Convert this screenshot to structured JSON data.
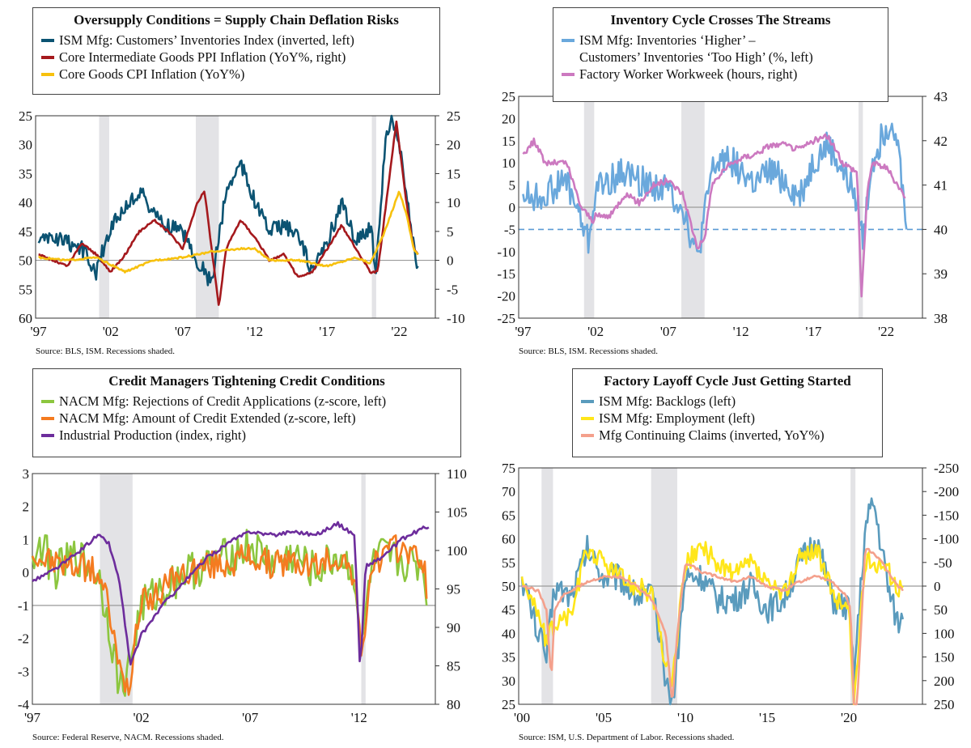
{
  "chart_data": [
    {
      "type": "line",
      "title": "Oversupply Conditions = Supply Chain Deflation Risks",
      "source": "Source: BLS, ISM. Recessions shaded.",
      "x_ticks": [
        "'97",
        "'02",
        "'07",
        "'12",
        "'17",
        "'22"
      ],
      "x_tick_years": [
        1997,
        2002,
        2007,
        2012,
        2017,
        2022
      ],
      "x_range": [
        1996.8,
        2024.5
      ],
      "left_axis": {
        "ticks": [
          "25",
          "30",
          "35",
          "40",
          "45",
          "50",
          "55",
          "60"
        ],
        "values": [
          25,
          30,
          35,
          40,
          45,
          50,
          55,
          60
        ],
        "range": [
          25,
          60
        ],
        "inverted": true
      },
      "right_axis": {
        "ticks": [
          "25",
          "20",
          "15",
          "10",
          "5",
          "0",
          "-5",
          "-10"
        ],
        "values": [
          25,
          20,
          15,
          10,
          5,
          0,
          -5,
          -10
        ],
        "range": [
          -10,
          25
        ]
      },
      "zero_line_right": 0,
      "recessions": [
        [
          2001.2,
          2001.9
        ],
        [
          2007.9,
          2009.5
        ],
        [
          2020.1,
          2020.4
        ]
      ],
      "series": [
        {
          "name": "ISM Mfg: Customers’ Inventories Index (inverted, left)",
          "color": "#0b5372",
          "axis": "left",
          "amp": 1.4,
          "x": [
            1997,
            1998,
            1999,
            2000,
            2001,
            2002,
            2003,
            2004,
            2005,
            2006,
            2007,
            2008,
            2009,
            2010,
            2011,
            2012,
            2013,
            2014,
            2015,
            2016,
            2017,
            2018,
            2019,
            2020,
            2020.4,
            2021,
            2021.5,
            2022,
            2022.5,
            2023,
            2023.3
          ],
          "y": [
            47,
            46,
            47,
            48,
            52,
            44,
            41,
            38,
            42,
            44,
            45,
            50,
            54,
            38,
            33,
            40,
            45,
            44,
            46,
            52,
            47,
            40,
            47,
            44,
            52,
            30,
            25,
            30,
            38,
            48,
            51
          ]
        },
        {
          "name": "Core Intermediate Goods PPI Inflation (YoY%, right)",
          "color": "#a5191d",
          "axis": "right",
          "amp": 0.2,
          "x": [
            1997,
            1998,
            1999,
            2000,
            2001,
            2002,
            2003,
            2004,
            2005,
            2006,
            2007,
            2008,
            2008.5,
            2009,
            2009.5,
            2010,
            2011,
            2012,
            2013,
            2014,
            2015,
            2016,
            2017,
            2018,
            2019,
            2020,
            2020.5,
            2021,
            2021.8,
            2022,
            2022.5,
            2023,
            2023.3
          ],
          "y": [
            1,
            0,
            -1,
            3,
            1,
            -2,
            1,
            5,
            7,
            5,
            2,
            10,
            12,
            2,
            -8,
            2,
            7,
            4,
            0,
            1,
            -3,
            -2,
            2,
            6,
            2,
            -2,
            -2,
            8,
            24,
            20,
            10,
            2,
            1
          ]
        },
        {
          "name": "Core Goods CPI Inflation (YoY%)",
          "color": "#f7c10e",
          "axis": "right",
          "amp": 0.15,
          "x": [
            1997,
            1999,
            2001,
            2003,
            2005,
            2007,
            2009,
            2011,
            2012,
            2013,
            2015,
            2017,
            2019,
            2020,
            2021,
            2022,
            2022.5,
            2023,
            2023.3
          ],
          "y": [
            0.5,
            0,
            0.5,
            -2,
            0,
            0.5,
            1.5,
            2,
            2,
            0,
            0,
            -1,
            0.5,
            -0.5,
            5,
            12,
            8,
            2,
            1
          ]
        }
      ]
    },
    {
      "type": "line",
      "title": "Inventory Cycle Crosses The Streams",
      "source": "Source: BLS, ISM. Recessions shaded.",
      "x_ticks": [
        "'97",
        "'02",
        "'07",
        "'12",
        "'17",
        "'22"
      ],
      "x_tick_years": [
        1997,
        2002,
        2007,
        2012,
        2017,
        2022
      ],
      "x_range": [
        1996.7,
        2024.5
      ],
      "left_axis": {
        "ticks": [
          "25",
          "20",
          "15",
          "10",
          "5",
          "0",
          "-5",
          "-10",
          "-15",
          "-20",
          "-25"
        ],
        "values": [
          25,
          20,
          15,
          10,
          5,
          0,
          -5,
          -10,
          -15,
          -20,
          -25
        ],
        "range": [
          -25,
          25
        ]
      },
      "right_axis": {
        "ticks": [
          "43",
          "42",
          "41",
          "40",
          "39",
          "38"
        ],
        "values": [
          43,
          42,
          41,
          40,
          39,
          38
        ],
        "range": [
          38,
          43
        ]
      },
      "zero_line_left": 0,
      "dashed_line_left": -5,
      "recessions": [
        [
          2001.2,
          2001.9
        ],
        [
          2007.9,
          2009.5
        ],
        [
          2020.1,
          2020.4
        ]
      ],
      "series": [
        {
          "name": "ISM Mfg: Inventories ‘Higher’ –\nCustomers’ Inventories ‘Too High’ (%, left)",
          "color": "#6aa8dc",
          "axis": "left",
          "amp": 3.5,
          "x": [
            1997,
            1998,
            1999,
            2000,
            2001,
            2001.5,
            2002,
            2003,
            2004,
            2005,
            2006,
            2007,
            2008,
            2009,
            2010,
            2011,
            2012,
            2013,
            2014,
            2015,
            2016,
            2017,
            2018,
            2019,
            2020,
            2020.4,
            2021,
            2022,
            2022.5,
            2023,
            2023.4
          ],
          "y": [
            3,
            2,
            4,
            6,
            -3,
            -8,
            4,
            6,
            8,
            6,
            5,
            4,
            0,
            -12,
            8,
            12,
            8,
            5,
            8,
            6,
            2,
            10,
            14,
            8,
            2,
            -8,
            10,
            18,
            20,
            8,
            -5
          ]
        },
        {
          "name": "Factory Worker Workweek (hours, right)",
          "color": "#cc79c0",
          "axis": "right",
          "amp": 0.07,
          "x": [
            1997,
            1997.8,
            1998.5,
            1999,
            2000,
            2001,
            2001.8,
            2002,
            2003,
            2004,
            2005,
            2006,
            2007,
            2008,
            2009,
            2009.5,
            2010,
            2011,
            2012,
            2013,
            2014,
            2015,
            2016,
            2017,
            2018,
            2019,
            2020,
            2020.3,
            2020.7,
            2021,
            2022,
            2023,
            2023.3
          ],
          "y": [
            41.7,
            42.0,
            41.5,
            41.5,
            41.5,
            40.5,
            40.2,
            40.3,
            40.3,
            40.8,
            40.6,
            41.0,
            41.1,
            40.8,
            39.6,
            39.8,
            41.0,
            41.4,
            41.6,
            41.7,
            41.9,
            41.9,
            41.8,
            42.0,
            42.1,
            41.5,
            41.3,
            38.5,
            40.8,
            41.5,
            41.4,
            40.9,
            40.7
          ]
        }
      ]
    },
    {
      "type": "line",
      "title": "Credit Managers Tightening Credit Conditions",
      "source": "Source: Federal Reserve, NACM. Recessions shaded.",
      "x_ticks": [
        "'97",
        "'02",
        "'07",
        "'12"
      ],
      "x_tick_years": [
        1997,
        2002,
        2007,
        2012
      ],
      "x_range": [
        1997,
        2015.5
      ],
      "left_axis": {
        "ticks": [
          "3",
          "2",
          "1",
          "0",
          "-1",
          "-2",
          "-3",
          "-4"
        ],
        "values": [
          3,
          2,
          1,
          0,
          -1,
          -2,
          -3,
          -4
        ],
        "range": [
          -4,
          3
        ]
      },
      "right_axis": {
        "ticks": [
          "110",
          "105",
          "100",
          "95",
          "90",
          "85",
          "80"
        ],
        "values": [
          110,
          105,
          100,
          95,
          90,
          85,
          80
        ],
        "range": [
          80,
          110
        ]
      },
      "zero_line_left": -1,
      "recessions": [
        [
          2000.1,
          2001.6
        ],
        [
          2012.1,
          2012.3
        ]
      ],
      "series": [
        {
          "name": "NACM Mfg: Rejections of Credit Applications (z-score, left)",
          "color": "#8cc63f",
          "axis": "left",
          "amp": 0.6,
          "x": [
            1997,
            1997.5,
            1998,
            1999,
            2000,
            2000.5,
            2001,
            2001.4,
            2002,
            2003,
            2004,
            2005,
            2006,
            2007,
            2008,
            2009,
            2010,
            2011,
            2011.8,
            2012.1,
            2012.5,
            2013,
            2014,
            2015,
            2015.1
          ],
          "y": [
            0.5,
            0.8,
            0,
            0.5,
            0,
            -1.5,
            -3.5,
            -3.0,
            -1,
            -0.5,
            0,
            0.2,
            0.5,
            0.8,
            0.3,
            0.5,
            0,
            0.5,
            0,
            -2.5,
            0,
            0.5,
            0.3,
            0.2,
            -1
          ]
        },
        {
          "name": "NACM Mfg: Amount of Credit Extended (z-score, left)",
          "color": "#f47b20",
          "axis": "left",
          "amp": 0.45,
          "x": [
            1997,
            1998,
            1999,
            2000,
            2000.5,
            2001,
            2001.4,
            2002,
            2003,
            2004,
            2005,
            2006,
            2007,
            2008,
            2009,
            2010,
            2011,
            2011.8,
            2012.1,
            2012.5,
            2013,
            2014,
            2015,
            2015.1
          ],
          "y": [
            0.5,
            0.3,
            0.2,
            0,
            -1,
            -3,
            -3.5,
            -1,
            -0.5,
            0,
            0.2,
            0.3,
            0.5,
            0.2,
            0.3,
            0.2,
            0.5,
            0,
            -2.8,
            0,
            0.5,
            0.8,
            0.3,
            -0.8
          ]
        },
        {
          "name": "Industrial Production (index, right)",
          "color": "#6d2d9c",
          "axis": "right",
          "amp": 0.25,
          "x": [
            1997,
            1998,
            1999,
            2000,
            2000.5,
            2001,
            2001.5,
            2002,
            2003,
            2004,
            2005,
            2006,
            2007,
            2008,
            2009,
            2010,
            2011,
            2011.8,
            2012.05,
            2012.3,
            2013,
            2014,
            2015,
            2015.2
          ],
          "y": [
            96,
            97.5,
            99.5,
            102,
            101,
            96,
            85,
            89,
            93,
            96,
            99,
            101,
            102.5,
            102,
            102.5,
            102,
            103.5,
            102,
            84,
            98,
            99,
            101.5,
            103,
            103
          ]
        }
      ]
    },
    {
      "type": "line",
      "title": "Factory Layoff Cycle Just Getting Started",
      "source": "Source: ISM, U.S. Department of Labor. Recessions shaded.",
      "x_ticks": [
        "'00",
        "'05",
        "'10",
        "'15",
        "'20"
      ],
      "x_tick_years": [
        2000,
        2005,
        2010,
        2015,
        2020
      ],
      "x_range": [
        1999.8,
        2024.5
      ],
      "left_axis": {
        "ticks": [
          "75",
          "70",
          "65",
          "60",
          "55",
          "50",
          "45",
          "40",
          "35",
          "30",
          "25"
        ],
        "values": [
          75,
          70,
          65,
          60,
          55,
          50,
          45,
          40,
          35,
          30,
          25
        ],
        "range": [
          25,
          75
        ]
      },
      "right_axis": {
        "ticks": [
          "-250",
          "-200",
          "-150",
          "-100",
          "-50",
          "0",
          "50",
          "100",
          "150",
          "200",
          "250"
        ],
        "values": [
          -250,
          -200,
          -150,
          -100,
          -50,
          0,
          50,
          100,
          150,
          200,
          250
        ],
        "range": [
          -250,
          250
        ],
        "inverted": true
      },
      "zero_line_left": 50,
      "recessions": [
        [
          2001.2,
          2001.9
        ],
        [
          2007.9,
          2009.5
        ],
        [
          2020.1,
          2020.4
        ]
      ],
      "series": [
        {
          "name": "ISM Mfg: Backlogs (left)",
          "color": "#5a9bbd",
          "axis": "left",
          "amp": 3,
          "x": [
            2000,
            2001,
            2001.5,
            2002,
            2003,
            2004,
            2005,
            2006,
            2007,
            2008,
            2008.8,
            2009.2,
            2010,
            2011,
            2012,
            2013,
            2014,
            2015,
            2016,
            2017,
            2018,
            2019,
            2020,
            2020.3,
            2021,
            2021.5,
            2022,
            2022.5,
            2023,
            2023.3
          ],
          "y": [
            52,
            40,
            35,
            50,
            48,
            58,
            52,
            52,
            48,
            48,
            30,
            25,
            52,
            52,
            47,
            47,
            50,
            45,
            47,
            55,
            60,
            47,
            45,
            30,
            62,
            68,
            58,
            48,
            42,
            43
          ]
        },
        {
          "name": "ISM Mfg: Employment (left)",
          "color": "#ffe61a",
          "axis": "left",
          "amp": 2.2,
          "x": [
            2000,
            2001,
            2001.5,
            2002,
            2003,
            2004,
            2005,
            2006,
            2007,
            2008,
            2008.8,
            2009.2,
            2010,
            2011,
            2012,
            2013,
            2014,
            2015,
            2016,
            2017,
            2018,
            2019,
            2020,
            2020.3,
            2021,
            2022,
            2023,
            2023.3
          ],
          "y": [
            52,
            44,
            38,
            42,
            44,
            58,
            55,
            52,
            50,
            48,
            33,
            30,
            55,
            58,
            55,
            52,
            55,
            50,
            48,
            56,
            58,
            48,
            45,
            25,
            55,
            55,
            50,
            50
          ]
        },
        {
          "name": "Mfg Continuing Claims (inverted, YoY%)",
          "color": "#f4a08c",
          "axis": "right",
          "amp": 3,
          "x": [
            2000,
            2001,
            2001.5,
            2001.8,
            2002,
            2002.5,
            2003,
            2004,
            2005,
            2006,
            2007,
            2008,
            2008.8,
            2009.2,
            2009.5,
            2010,
            2011,
            2012,
            2013,
            2014,
            2015,
            2016,
            2017,
            2018,
            2019,
            2019.8,
            2020.1,
            2020.3,
            2020.5,
            2021,
            2021.5,
            2022,
            2023,
            2023.3
          ],
          "y": [
            0,
            10,
            50,
            200,
            50,
            20,
            10,
            -10,
            -20,
            -20,
            0,
            30,
            100,
            250,
            100,
            -50,
            -30,
            -20,
            -10,
            -20,
            0,
            10,
            -10,
            -20,
            -10,
            20,
            50,
            250,
            250,
            -80,
            -70,
            -50,
            0,
            10
          ]
        }
      ]
    }
  ]
}
